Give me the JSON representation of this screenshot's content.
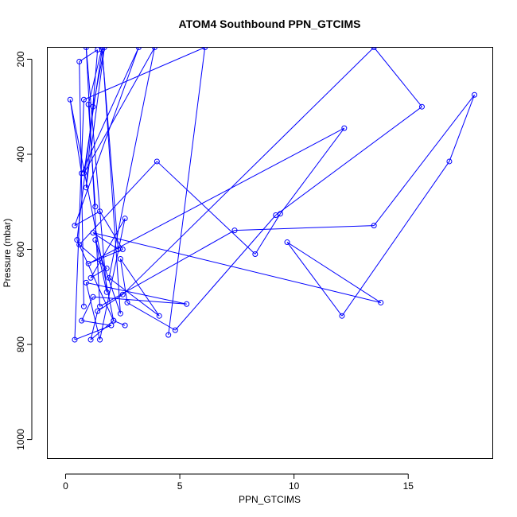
{
  "chart_data": {
    "type": "line",
    "title": "ATOM4 Southbound PPN_GTCIMS",
    "xlabel": "PPN_GTCIMS",
    "ylabel": "Pressure (mbar)",
    "xlim": [
      -0.8,
      18.7
    ],
    "ylim": [
      1040,
      175
    ],
    "y_reversed": true,
    "x_ticks": [
      0,
      5,
      10,
      15
    ],
    "x_tick_labels": [
      "0",
      "5",
      "10",
      "15"
    ],
    "y_ticks": [
      200,
      400,
      600,
      800,
      1000
    ],
    "y_tick_labels": [
      "200",
      "400",
      "600",
      "800",
      "1000"
    ],
    "grid": false,
    "legend": "none",
    "series_color": "#0000ff",
    "marker": "open-circle",
    "series": [
      {
        "x": [
          0.8,
          0.6,
          1.4,
          0.9,
          1.7,
          1.2,
          0.5,
          2.1,
          0.2,
          0.7,
          3.2,
          0.4,
          1.5,
          2.5,
          1.0,
          12.2,
          9.4,
          8.3,
          4.0,
          0.6,
          1.8,
          1.1,
          2.6,
          1.5,
          0.9,
          5.3,
          1.2,
          0.7,
          2.0,
          0.4,
          0.8,
          6.1,
          4.5
        ],
        "y": [
          720,
          205,
          180,
          470,
          175,
          300,
          580,
          750,
          285,
          440,
          175,
          550,
          520,
          600,
          630,
          345,
          525,
          610,
          415,
          590,
          640,
          660,
          535,
          790,
          670,
          715,
          700,
          750,
          760,
          790,
          285,
          175,
          780
        ]
      },
      {
        "x": [
          1.3,
          1.0,
          1.6,
          2.4,
          1.3,
          1.8,
          0.9,
          1.5,
          7.4,
          13.5,
          17.9,
          16.8,
          12.1,
          9.7,
          13.8,
          1.2,
          2.3,
          1.6,
          0.8,
          3.9,
          1.9,
          4.1,
          2.4,
          2.7,
          4.8,
          9.2,
          15.6,
          13.5,
          2.5,
          1.4,
          1.1,
          2.1,
          2.6
        ],
        "y": [
          510,
          295,
          175,
          735,
          580,
          690,
          175,
          720,
          560,
          550,
          275,
          415,
          740,
          585,
          712,
          565,
          600,
          180,
          440,
          175,
          660,
          740,
          620,
          712,
          770,
          528,
          300,
          175,
          695,
          730,
          790,
          750,
          760
        ]
      }
    ]
  }
}
